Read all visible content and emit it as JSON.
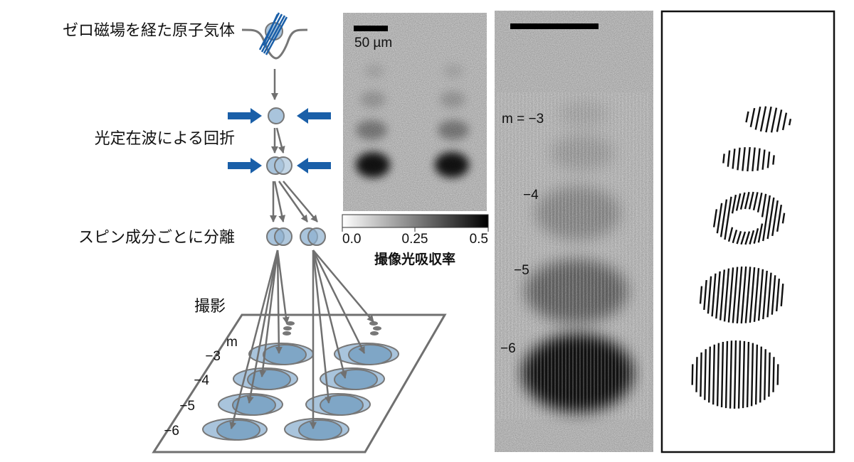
{
  "schematic": {
    "step_labels": [
      "ゼロ磁場を経た原子気体",
      "光定在波による回折",
      "スピン成分ごとに分離",
      "撮影"
    ],
    "plate_m_header": "m",
    "plate_m_labels": [
      "−3",
      "−4",
      "−5",
      "−6"
    ]
  },
  "absorption_image": {
    "scale_bar_label": "50 µm",
    "colorbar": {
      "ticks": [
        "0.0",
        "0.25",
        "0.5"
      ],
      "range": [
        0,
        0.5
      ],
      "label": "撮像光吸収率"
    }
  },
  "zoom_image": {
    "order_labels": [
      "m = −3",
      "−4",
      "−5",
      "−6"
    ]
  },
  "colors": {
    "laser_blue": "#1a5fa8",
    "atom_fill": "#a9c4dc",
    "atom_dark": "#7fa6c6",
    "arrow_gray": "#707070"
  }
}
